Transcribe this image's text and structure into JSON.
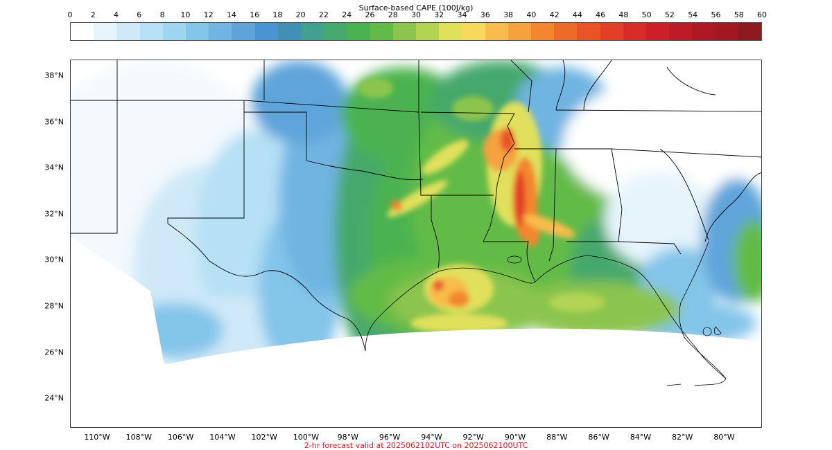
{
  "colorbar": {
    "title": "Surface-based CAPE (100J/kg)",
    "ticks": [
      "0",
      "2",
      "4",
      "6",
      "8",
      "10",
      "12",
      "14",
      "16",
      "18",
      "20",
      "22",
      "24",
      "26",
      "28",
      "30",
      "32",
      "34",
      "36",
      "38",
      "40",
      "42",
      "44",
      "46",
      "48",
      "50",
      "52",
      "54",
      "56",
      "58",
      "60"
    ],
    "colors": [
      "#ffffff",
      "#e6f4fc",
      "#cfe9f8",
      "#b6e0f5",
      "#9ed6f2",
      "#84c5ea",
      "#6fb4e2",
      "#5ea4da",
      "#4a94d2",
      "#3f8fb6",
      "#44a08e",
      "#47a86c",
      "#4bb24f",
      "#63bb47",
      "#8cc54e",
      "#b3d353",
      "#e0e05b",
      "#f9d95d",
      "#f8bc4c",
      "#f6a23f",
      "#f3862f",
      "#ee6a28",
      "#e95427",
      "#e33f26",
      "#d92b27",
      "#cc1f28",
      "#bd1b26",
      "#ae1824",
      "#a01822",
      "#8d1a1e"
    ]
  },
  "map": {
    "lat_labels": [
      "38°N",
      "36°N",
      "34°N",
      "32°N",
      "30°N",
      "28°N",
      "26°N",
      "24°N"
    ],
    "lon_labels": [
      "110°W",
      "108°W",
      "106°W",
      "104°W",
      "102°W",
      "100°W",
      "98°W",
      "96°W",
      "94°W",
      "92°W",
      "90°W",
      "88°W",
      "86°W",
      "84°W",
      "82°W",
      "80°W"
    ]
  },
  "caption": {
    "text": "2-hr forecast valid at 2025062102UTC on 2025062100UTC",
    "color": "#e4171b"
  }
}
